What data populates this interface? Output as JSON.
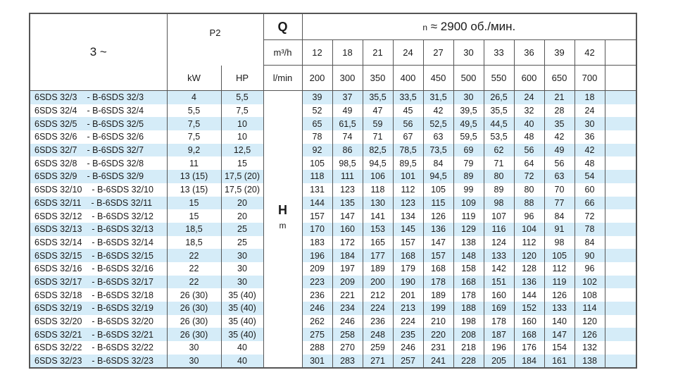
{
  "header": {
    "phase": "3 ~",
    "power": "P2",
    "kw": "kW",
    "hp": "HP",
    "q": "Q",
    "q_unit_m3h": "m³/h",
    "q_unit_lmin": "l/min",
    "speed_prefix": "n",
    "speed": "≈ 2900 об./мин.",
    "flow_m3h": [
      "12",
      "18",
      "21",
      "24",
      "27",
      "30",
      "33",
      "36",
      "39",
      "42"
    ],
    "flow_lmin": [
      "200",
      "300",
      "350",
      "400",
      "450",
      "500",
      "550",
      "600",
      "650",
      "700"
    ],
    "head": "H",
    "head_unit": "m"
  },
  "rows": [
    {
      "model": "6SDS 32/3",
      "alt": "- B-6SDS 32/3",
      "kw": "4",
      "hp": "5,5",
      "h": [
        "39",
        "37",
        "35,5",
        "33,5",
        "31,5",
        "30",
        "26,5",
        "24",
        "21",
        "18"
      ]
    },
    {
      "model": "6SDS 32/4",
      "alt": "- B-6SDS 32/4",
      "kw": "5,5",
      "hp": "7,5",
      "h": [
        "52",
        "49",
        "47",
        "45",
        "42",
        "39,5",
        "35,5",
        "32",
        "28",
        "24"
      ]
    },
    {
      "model": "6SDS 32/5",
      "alt": "- B-6SDS 32/5",
      "kw": "7,5",
      "hp": "10",
      "h": [
        "65",
        "61,5",
        "59",
        "56",
        "52,5",
        "49,5",
        "44,5",
        "40",
        "35",
        "30"
      ]
    },
    {
      "model": "6SDS 32/6",
      "alt": "- B-6SDS 32/6",
      "kw": "7,5",
      "hp": "10",
      "h": [
        "78",
        "74",
        "71",
        "67",
        "63",
        "59,5",
        "53,5",
        "48",
        "42",
        "36"
      ]
    },
    {
      "model": "6SDS 32/7",
      "alt": "- B-6SDS 32/7",
      "kw": "9,2",
      "hp": "12,5",
      "h": [
        "92",
        "86",
        "82,5",
        "78,5",
        "73,5",
        "69",
        "62",
        "56",
        "49",
        "42"
      ]
    },
    {
      "model": "6SDS 32/8",
      "alt": "- B-6SDS 32/8",
      "kw": "11",
      "hp": "15",
      "h": [
        "105",
        "98,5",
        "94,5",
        "89,5",
        "84",
        "79",
        "71",
        "64",
        "56",
        "48"
      ]
    },
    {
      "model": "6SDS 32/9",
      "alt": "- B-6SDS 32/9",
      "kw": "13 (15)",
      "hp": "17,5 (20)",
      "h": [
        "118",
        "111",
        "106",
        "101",
        "94,5",
        "89",
        "80",
        "72",
        "63",
        "54"
      ]
    },
    {
      "model": "6SDS 32/10",
      "alt": "- B-6SDS 32/10",
      "kw": "13 (15)",
      "hp": "17,5 (20)",
      "h": [
        "131",
        "123",
        "118",
        "112",
        "105",
        "99",
        "89",
        "80",
        "70",
        "60"
      ]
    },
    {
      "model": "6SDS 32/11",
      "alt": "- B-6SDS 32/11",
      "kw": "15",
      "hp": "20",
      "h": [
        "144",
        "135",
        "130",
        "123",
        "115",
        "109",
        "98",
        "88",
        "77",
        "66"
      ]
    },
    {
      "model": "6SDS 32/12",
      "alt": "- B-6SDS 32/12",
      "kw": "15",
      "hp": "20",
      "h": [
        "157",
        "147",
        "141",
        "134",
        "126",
        "119",
        "107",
        "96",
        "84",
        "72"
      ]
    },
    {
      "model": "6SDS 32/13",
      "alt": "- B-6SDS 32/13",
      "kw": "18,5",
      "hp": "25",
      "h": [
        "170",
        "160",
        "153",
        "145",
        "136",
        "129",
        "116",
        "104",
        "91",
        "78"
      ]
    },
    {
      "model": "6SDS 32/14",
      "alt": "- B-6SDS 32/14",
      "kw": "18,5",
      "hp": "25",
      "h": [
        "183",
        "172",
        "165",
        "157",
        "147",
        "138",
        "124",
        "112",
        "98",
        "84"
      ]
    },
    {
      "model": "6SDS 32/15",
      "alt": "- B-6SDS 32/15",
      "kw": "22",
      "hp": "30",
      "h": [
        "196",
        "184",
        "177",
        "168",
        "157",
        "148",
        "133",
        "120",
        "105",
        "90"
      ]
    },
    {
      "model": "6SDS 32/16",
      "alt": "- B-6SDS 32/16",
      "kw": "22",
      "hp": "30",
      "h": [
        "209",
        "197",
        "189",
        "179",
        "168",
        "158",
        "142",
        "128",
        "112",
        "96"
      ]
    },
    {
      "model": "6SDS 32/17",
      "alt": "- B-6SDS 32/17",
      "kw": "22",
      "hp": "30",
      "h": [
        "223",
        "209",
        "200",
        "190",
        "178",
        "168",
        "151",
        "136",
        "119",
        "102"
      ]
    },
    {
      "model": "6SDS 32/18",
      "alt": "- B-6SDS 32/18",
      "kw": "26 (30)",
      "hp": "35 (40)",
      "h": [
        "236",
        "221",
        "212",
        "201",
        "189",
        "178",
        "160",
        "144",
        "126",
        "108"
      ]
    },
    {
      "model": "6SDS 32/19",
      "alt": "- B-6SDS 32/19",
      "kw": "26 (30)",
      "hp": "35 (40)",
      "h": [
        "246",
        "234",
        "224",
        "213",
        "199",
        "188",
        "169",
        "152",
        "133",
        "114"
      ]
    },
    {
      "model": "6SDS 32/20",
      "alt": "- B-6SDS 32/20",
      "kw": "26 (30)",
      "hp": "35 (40)",
      "h": [
        "262",
        "246",
        "236",
        "224",
        "210",
        "198",
        "178",
        "160",
        "140",
        "120"
      ]
    },
    {
      "model": "6SDS 32/21",
      "alt": "- B-6SDS 32/21",
      "kw": "26 (30)",
      "hp": "35 (40)",
      "h": [
        "275",
        "258",
        "248",
        "235",
        "220",
        "208",
        "187",
        "168",
        "147",
        "126"
      ]
    },
    {
      "model": "6SDS 32/22",
      "alt": "- B-6SDS 32/22",
      "kw": "30",
      "hp": "40",
      "h": [
        "288",
        "270",
        "259",
        "246",
        "231",
        "218",
        "196",
        "176",
        "154",
        "132"
      ]
    },
    {
      "model": "6SDS 32/23",
      "alt": "- B-6SDS 32/23",
      "kw": "30",
      "hp": "40",
      "h": [
        "301",
        "283",
        "271",
        "257",
        "241",
        "228",
        "205",
        "184",
        "161",
        "138"
      ]
    }
  ],
  "colors": {
    "stripe": "#d5ecf8",
    "border": "#555555"
  }
}
